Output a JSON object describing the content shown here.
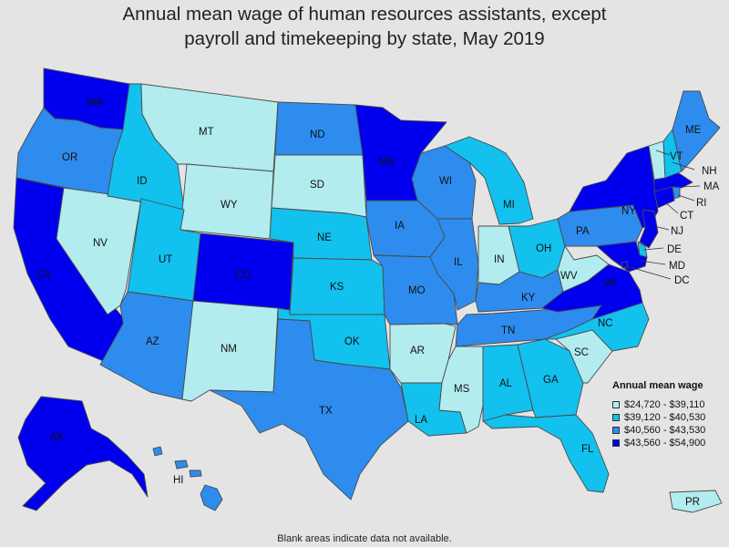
{
  "title": {
    "line1": "Annual mean wage of human resources assistants, except",
    "line2": "payroll and timekeeping by state, May 2019"
  },
  "legend": {
    "title": "Annual mean wage",
    "items": [
      {
        "label": "$24,720 - $39,110",
        "color": "#b2ecee"
      },
      {
        "label": "$39,120 - $40,530",
        "color": "#12c1ee"
      },
      {
        "label": "$40,560 - $43,530",
        "color": "#2e8cee"
      },
      {
        "label": "$43,560 - $54,900",
        "color": "#0000ee"
      }
    ]
  },
  "footnote": "Blank areas indicate data not available.",
  "states": {
    "WA": 3,
    "OR": 2,
    "CA": 3,
    "NV": 0,
    "ID": 1,
    "MT": 0,
    "WY": 0,
    "UT": 1,
    "AZ": 2,
    "CO": 3,
    "NM": 0,
    "ND": 2,
    "SD": 0,
    "NE": 1,
    "KS": 1,
    "OK": 1,
    "TX": 2,
    "MN": 3,
    "IA": 2,
    "MO": 2,
    "AR": 0,
    "LA": 1,
    "WI": 2,
    "IL": 2,
    "MI": 1,
    "IN": 0,
    "OH": 1,
    "KY": 2,
    "TN": 2,
    "MS": 0,
    "AL": 1,
    "GA": 1,
    "FL": 1,
    "SC": 0,
    "NC": 1,
    "VA": 3,
    "WV": 0,
    "PA": 2,
    "NY": 3,
    "VT": 0,
    "NH": 1,
    "ME": 2,
    "MA": 3,
    "RI": 2,
    "CT": 3,
    "NJ": 3,
    "DE": 1,
    "MD": 3,
    "DC": 3,
    "AK": 3,
    "HI": 2,
    "PR": 0
  }
}
